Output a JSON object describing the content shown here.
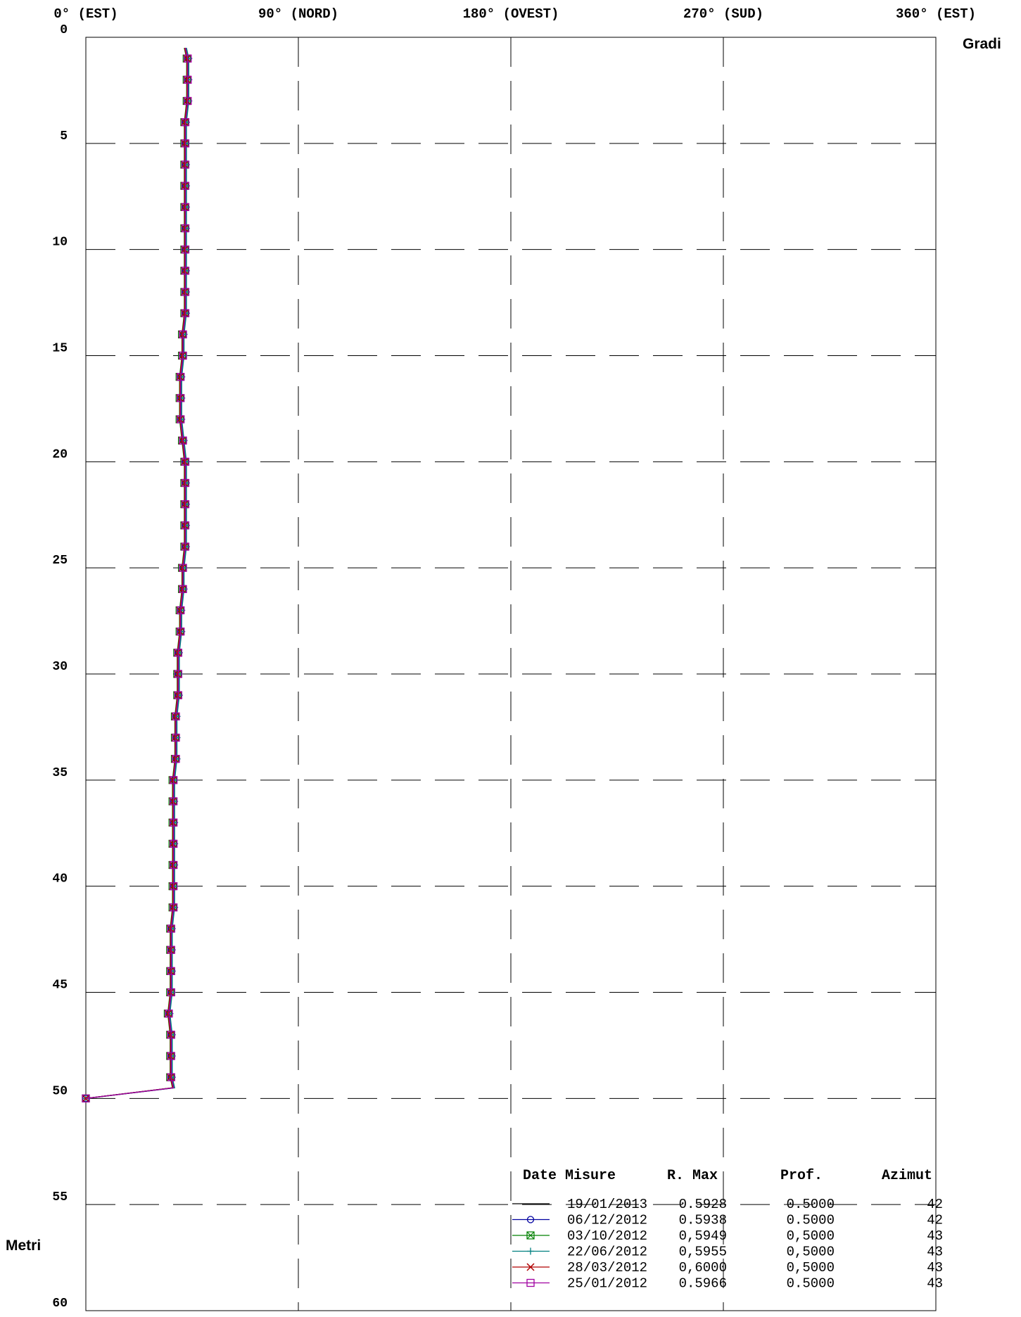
{
  "chart_data": {
    "type": "line",
    "title": "",
    "x_axis": {
      "label": "Gradi",
      "range": [
        0,
        360
      ],
      "ticks": [
        {
          "value": 0,
          "label": "0° (EST)"
        },
        {
          "value": 90,
          "label": "90° (NORD)"
        },
        {
          "value": 180,
          "label": "180° (OVEST)"
        },
        {
          "value": 270,
          "label": "270° (SUD)"
        },
        {
          "value": 360,
          "label": "360° (EST)"
        }
      ]
    },
    "y_axis": {
      "label": "Metri",
      "range": [
        0,
        60
      ],
      "inverted": true,
      "ticks": [
        0,
        5,
        10,
        15,
        20,
        25,
        30,
        35,
        40,
        45,
        50,
        55,
        60
      ]
    },
    "grid": true,
    "legend": {
      "position": "bottom-right",
      "headers": {
        "date": "Date Misure",
        "rmax": "R. Max",
        "prof": "Prof.",
        "azimut": "Azimut"
      },
      "entries": [
        {
          "date": "19/01/2013",
          "rmax": "0.5928",
          "prof": "0.5000",
          "azimut": "42"
        },
        {
          "date": "06/12/2012",
          "rmax": "0.5938",
          "prof": "0.5000",
          "azimut": "42"
        },
        {
          "date": "03/10/2012",
          "rmax": "0,5949",
          "prof": "0,5000",
          "azimut": "43"
        },
        {
          "date": "22/06/2012",
          "rmax": "0,5955",
          "prof": "0,5000",
          "azimut": "43"
        },
        {
          "date": "28/03/2012",
          "rmax": "0,6000",
          "prof": "0,5000",
          "azimut": "43"
        },
        {
          "date": "25/01/2012",
          "rmax": "0.5966",
          "prof": "0.5000",
          "azimut": "43"
        }
      ]
    },
    "depths": [
      0.5,
      1,
      2,
      3,
      4,
      5,
      6,
      7,
      8,
      9,
      10,
      11,
      12,
      13,
      14,
      15,
      16,
      17,
      18,
      19,
      20,
      21,
      22,
      23,
      24,
      25,
      26,
      27,
      28,
      29,
      30,
      31,
      32,
      33,
      34,
      35,
      36,
      37,
      38,
      39,
      40,
      41,
      42,
      43,
      44,
      45,
      46,
      47,
      48,
      49,
      49.5,
      50
    ],
    "azimuth_profile": [
      42,
      43,
      43,
      43,
      42,
      42,
      42,
      42,
      42,
      42,
      42,
      42,
      42,
      42,
      41,
      41,
      40,
      40,
      40,
      41,
      42,
      42,
      42,
      42,
      42,
      41,
      41,
      40,
      40,
      39,
      39,
      39,
      38,
      38,
      38,
      37,
      37,
      37,
      37,
      37,
      37,
      37,
      36,
      36,
      36,
      36,
      35,
      36,
      36,
      36,
      37,
      0
    ],
    "series": [
      {
        "date": "19/01/2013",
        "color": "#000000",
        "marker": "none",
        "marker_depths": []
      },
      {
        "date": "06/12/2012",
        "color": "#0000a0",
        "marker": "circle",
        "marker_depths": [
          1,
          2,
          3,
          4,
          5,
          6,
          7,
          8,
          9,
          10,
          11,
          12,
          13,
          14,
          15,
          16,
          17,
          18,
          19,
          20,
          21,
          22,
          23,
          24,
          25,
          26,
          27,
          28,
          29,
          30,
          31,
          32,
          33,
          34,
          35,
          36,
          37,
          38,
          39,
          40,
          41,
          42,
          43,
          44,
          45,
          46,
          47,
          48,
          49,
          50
        ]
      },
      {
        "date": "03/10/2012",
        "color": "#008000",
        "marker": "box-x",
        "marker_depths": [
          1,
          2,
          3,
          4,
          5,
          6,
          7,
          8,
          9,
          10,
          11,
          12,
          13,
          14,
          15,
          16,
          17,
          18,
          19,
          20,
          21,
          22,
          23,
          24,
          25,
          26,
          27,
          28,
          29,
          30,
          31,
          32,
          33,
          34,
          35,
          36,
          37,
          38,
          39,
          40,
          41,
          42,
          43,
          44,
          45,
          46,
          47,
          48,
          49,
          50
        ]
      },
      {
        "date": "22/06/2012",
        "color": "#008080",
        "marker": "plus",
        "marker_depths": [
          1,
          2,
          3,
          4,
          5,
          6,
          7,
          8,
          9,
          10,
          11,
          12,
          13,
          14,
          15,
          16,
          17,
          18,
          19,
          20,
          21,
          22,
          23,
          24,
          25,
          26,
          27,
          28,
          29,
          30,
          31,
          32,
          33,
          34,
          35,
          36,
          37,
          38,
          39,
          40,
          41,
          42,
          43,
          44,
          45,
          46,
          47,
          48,
          49,
          50
        ]
      },
      {
        "date": "28/03/2012",
        "color": "#b00000",
        "marker": "x",
        "marker_depths": [
          1,
          2,
          3,
          4,
          5,
          6,
          7,
          8,
          9,
          10,
          11,
          12,
          13,
          14,
          15,
          16,
          17,
          18,
          19,
          20,
          21,
          22,
          23,
          24,
          25,
          26,
          27,
          28,
          29,
          30,
          31,
          32,
          33,
          34,
          35,
          36,
          37,
          38,
          39,
          40,
          41,
          42,
          43,
          44,
          45,
          46,
          47,
          48,
          49,
          50
        ]
      },
      {
        "date": "25/01/2012",
        "color": "#a000a0",
        "marker": "square",
        "marker_depths": [
          1,
          2,
          3,
          4,
          5,
          6,
          7,
          8,
          9,
          10,
          11,
          12,
          13,
          14,
          15,
          16,
          17,
          18,
          19,
          20,
          21,
          22,
          23,
          24,
          25,
          26,
          27,
          28,
          29,
          30,
          31,
          32,
          33,
          34,
          35,
          36,
          37,
          38,
          39,
          40,
          41,
          42,
          43,
          44,
          45,
          46,
          47,
          48,
          49,
          50
        ]
      }
    ]
  }
}
